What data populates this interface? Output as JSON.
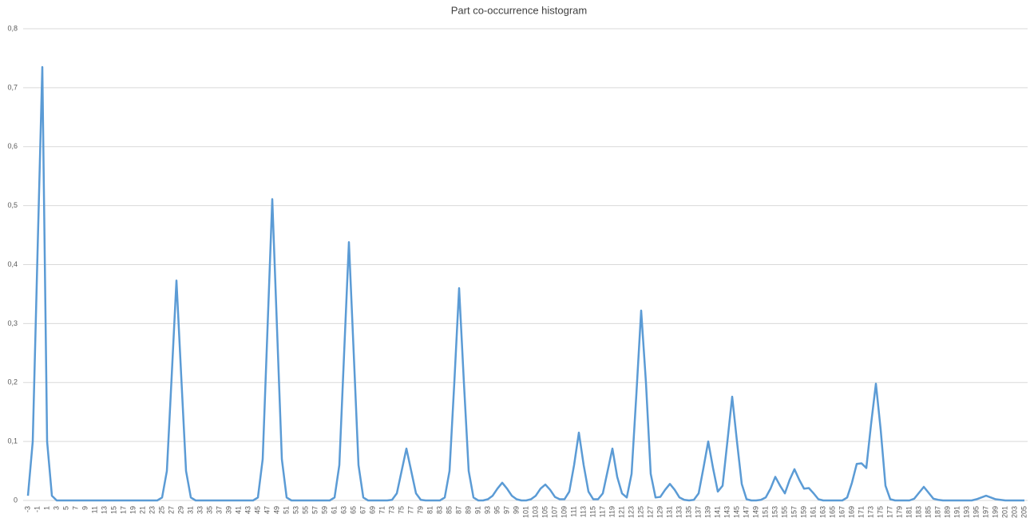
{
  "chart_data": {
    "type": "line",
    "title": "Part co-occurrence histogram",
    "categories": [
      "-3",
      null,
      "-1",
      null,
      "1",
      null,
      "3",
      null,
      "5",
      null,
      "7",
      null,
      "9",
      null,
      "11",
      null,
      "13",
      null,
      "15",
      null,
      "17",
      null,
      "19",
      null,
      "21",
      null,
      "23",
      null,
      "25",
      null,
      "27",
      null,
      "29",
      null,
      "31",
      null,
      "33",
      null,
      "35",
      null,
      "37",
      null,
      "39",
      null,
      "41",
      null,
      "43",
      null,
      "45",
      null,
      "47",
      null,
      "49",
      null,
      "51",
      null,
      "53",
      null,
      "55",
      null,
      "57",
      null,
      "59",
      null,
      "61",
      null,
      "63",
      null,
      "65",
      null,
      "67",
      null,
      "69",
      null,
      "71",
      null,
      "73",
      null,
      "75",
      null,
      "77",
      null,
      "79",
      null,
      "81",
      null,
      "83",
      null,
      "85",
      null,
      "87",
      null,
      "89",
      null,
      "91",
      null,
      "93",
      null,
      "95",
      null,
      "97",
      null,
      "99",
      null,
      "101",
      null,
      "103",
      null,
      "105",
      null,
      "107",
      null,
      "109",
      null,
      "111",
      null,
      "113",
      null,
      "115",
      null,
      "117",
      null,
      "119",
      null,
      "121",
      null,
      "123",
      null,
      "125",
      null,
      "127",
      null,
      "129",
      null,
      "131",
      null,
      "133",
      null,
      "135",
      null,
      "137",
      null,
      "139",
      null,
      "141",
      null,
      "143",
      null,
      "145",
      null,
      "147",
      null,
      "149",
      null,
      "151",
      null,
      "153",
      null,
      "155",
      null,
      "157",
      null,
      "159",
      null,
      "161",
      null,
      "163",
      null,
      "165",
      null,
      "167",
      null,
      "169",
      null,
      "171",
      null,
      "173",
      null,
      "175",
      null,
      "177",
      null,
      "179",
      null,
      "181",
      null,
      "183",
      null,
      "185",
      null,
      "187",
      null,
      "189",
      null,
      "191",
      null,
      "193",
      null,
      "195",
      null,
      "197",
      null,
      "199",
      null,
      "201",
      null,
      "203",
      null,
      "205"
    ],
    "series": [
      {
        "color": "#5b9bd5",
        "values": [
          0.008,
          0.1,
          0.42,
          0.735,
          0.1,
          0.008,
          0,
          0,
          0,
          0,
          0,
          0,
          0,
          0,
          0,
          0,
          0,
          0,
          0,
          0,
          0,
          0,
          0,
          0,
          0,
          0,
          0,
          0,
          0.005,
          0.05,
          0.21,
          0.373,
          0.21,
          0.05,
          0.005,
          0,
          0,
          0,
          0,
          0,
          0,
          0,
          0,
          0,
          0,
          0,
          0,
          0,
          0.005,
          0.07,
          0.29,
          0.511,
          0.29,
          0.07,
          0.005,
          0,
          0,
          0,
          0,
          0,
          0,
          0,
          0,
          0,
          0.005,
          0.06,
          0.25,
          0.438,
          0.25,
          0.06,
          0.005,
          0,
          0,
          0,
          0,
          0,
          0.001,
          0.012,
          0.05,
          0.088,
          0.05,
          0.012,
          0.001,
          0,
          0,
          0,
          0,
          0.005,
          0.05,
          0.2,
          0.36,
          0.2,
          0.05,
          0.005,
          0,
          0,
          0.002,
          0.008,
          0.02,
          0.03,
          0.02,
          0.008,
          0.002,
          0,
          0,
          0.002,
          0.008,
          0.02,
          0.027,
          0.018,
          0.006,
          0.002,
          0.002,
          0.015,
          0.06,
          0.115,
          0.06,
          0.015,
          0.002,
          0.002,
          0.012,
          0.05,
          0.088,
          0.04,
          0.012,
          0.005,
          0.045,
          0.18,
          0.322,
          0.2,
          0.045,
          0.005,
          0.006,
          0.018,
          0.028,
          0.018,
          0.005,
          0.001,
          0,
          0.001,
          0.012,
          0.055,
          0.1,
          0.055,
          0.015,
          0.025,
          0.1,
          0.176,
          0.1,
          0.028,
          0.002,
          0,
          0,
          0.001,
          0.005,
          0.02,
          0.04,
          0.025,
          0.012,
          0.035,
          0.053,
          0.035,
          0.02,
          0.021,
          0.012,
          0.002,
          0,
          0,
          0,
          0,
          0,
          0.005,
          0.03,
          0.062,
          0.063,
          0.055,
          0.13,
          0.198,
          0.12,
          0.025,
          0.002,
          0,
          0,
          0,
          0,
          0.003,
          0.013,
          0.023,
          0.013,
          0.003,
          0.001,
          0,
          0,
          0,
          0,
          0,
          0,
          0,
          0.002,
          0.005,
          0.008,
          0.005,
          0.002,
          0.001,
          0,
          0,
          0,
          0,
          0
        ]
      }
    ],
    "ylim": [
      0,
      0.8
    ],
    "yticks": [
      0,
      {
        "value": 0.1,
        "label": "0,1"
      },
      {
        "value": 0.2,
        "label": "0,2"
      },
      {
        "value": 0.3,
        "label": "0,3"
      },
      {
        "value": 0.4,
        "label": "0,4"
      },
      {
        "value": 0.5,
        "label": "0,5"
      },
      {
        "value": 0.6,
        "label": "0,6"
      },
      {
        "value": 0.7,
        "label": "0,7"
      },
      {
        "value": 0.8,
        "label": "0,8"
      }
    ],
    "grid": true
  }
}
